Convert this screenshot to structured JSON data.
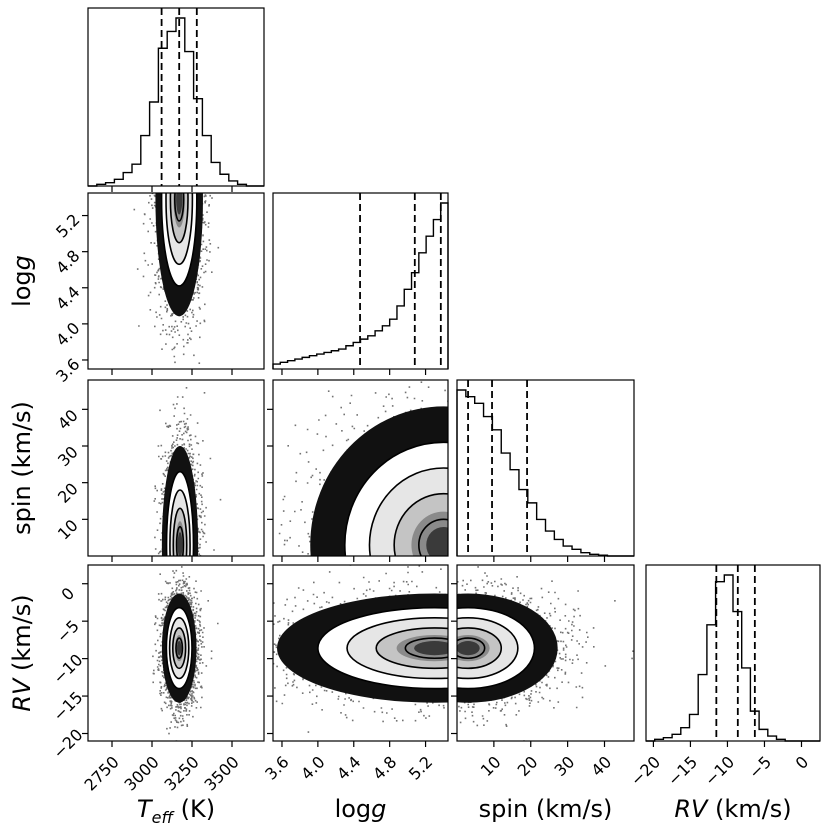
{
  "chart_data": {
    "type": "corner",
    "parameters": [
      {
        "name": "T_eff (K)",
        "label_main": "T",
        "label_sub": "eff",
        "label_unit": " (K)",
        "range": [
          2600,
          3700
        ],
        "ticks": [
          2750,
          3000,
          3250,
          3500
        ],
        "tick_labels": [
          "2750",
          "3000",
          "3250",
          "3500"
        ],
        "quantiles": [
          3060,
          3170,
          3280
        ],
        "hist": [
          0,
          0.01,
          0.02,
          0.04,
          0.08,
          0.13,
          0.3,
          0.5,
          0.82,
          0.92,
          1.0,
          0.8,
          0.52,
          0.3,
          0.14,
          0.07,
          0.03,
          0.01,
          0,
          0
        ]
      },
      {
        "name": "logg",
        "label_main": "log",
        "label_ital": "g",
        "range": [
          3.5,
          5.45
        ],
        "ticks": [
          3.6,
          4.0,
          4.4,
          4.8,
          5.2
        ],
        "tick_labels": [
          "3.6",
          "4.0",
          "4.4",
          "4.8",
          "5.2"
        ],
        "quantiles": [
          4.47,
          5.08,
          5.37
        ],
        "hist": [
          0.03,
          0.04,
          0.05,
          0.06,
          0.07,
          0.08,
          0.09,
          0.1,
          0.11,
          0.12,
          0.14,
          0.16,
          0.18,
          0.2,
          0.23,
          0.26,
          0.3,
          0.38,
          0.48,
          0.58,
          0.7,
          0.8,
          0.9,
          1.0
        ]
      },
      {
        "name": "spin (km/s)",
        "label_main": "spin (km/s)",
        "range": [
          0,
          48
        ],
        "ticks": [
          10,
          20,
          30,
          40
        ],
        "tick_labels": [
          "10",
          "20",
          "30",
          "40"
        ],
        "quantiles": [
          3.0,
          9.5,
          19.0
        ],
        "hist": [
          1.0,
          0.96,
          0.92,
          0.84,
          0.76,
          0.62,
          0.52,
          0.4,
          0.32,
          0.22,
          0.15,
          0.1,
          0.06,
          0.04,
          0.02,
          0.01,
          0.005,
          0,
          0,
          0
        ]
      },
      {
        "name": "RV (km/s)",
        "label_main": "RV",
        "label_unit": " (km/s)",
        "range": [
          -21,
          2.5
        ],
        "ticks": [
          -20,
          -15,
          -10,
          -5,
          0
        ],
        "tick_labels": [
          "−20",
          "−15",
          "−10",
          "−5",
          "0"
        ],
        "quantiles": [
          -11.5,
          -8.6,
          -6.3
        ],
        "hist": [
          0,
          0.01,
          0.02,
          0.04,
          0.08,
          0.16,
          0.4,
          0.7,
          0.96,
          1.0,
          0.78,
          0.44,
          0.18,
          0.07,
          0.03,
          0.01,
          0,
          0,
          0,
          0
        ]
      }
    ],
    "pairs": [
      {
        "x": 0,
        "y": 1,
        "peak": [
          3170,
          5.38
        ]
      },
      {
        "x": 0,
        "y": 2,
        "peak": [
          3175,
          3.0
        ]
      },
      {
        "x": 1,
        "y": 2,
        "peak": [
          5.4,
          3.0
        ]
      },
      {
        "x": 0,
        "y": 3,
        "peak": [
          3170,
          -8.6
        ]
      },
      {
        "x": 1,
        "y": 3,
        "peak": [
          5.3,
          -8.6
        ]
      },
      {
        "x": 2,
        "y": 3,
        "peak": [
          3.0,
          -8.6
        ]
      }
    ]
  }
}
